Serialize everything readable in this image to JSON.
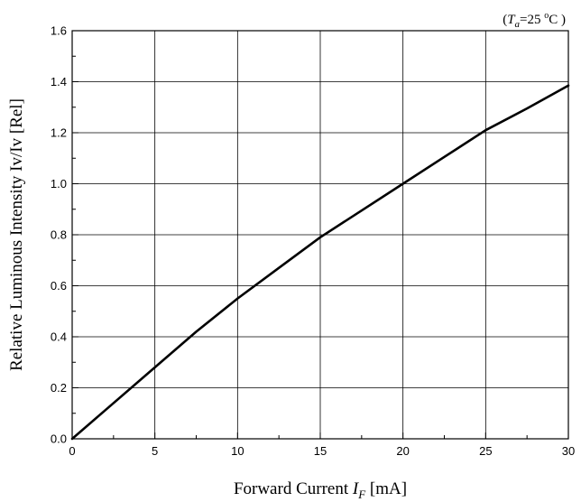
{
  "chart_data": {
    "type": "line",
    "title": "",
    "condition": {
      "open": "(",
      "var": "T",
      "sub": "a",
      "rest": "=25 ",
      "unit_sup": "o",
      "unit": "C )"
    },
    "xlabel": {
      "prefix": "Forward Current  ",
      "var": "I",
      "sub": "F",
      "suffix": " [mA]"
    },
    "ylabel": "Relative Luminous Intensity Iv/Iv [Rel]",
    "xlim": [
      0,
      30
    ],
    "ylim": [
      0,
      1.6
    ],
    "xticks": [
      "0",
      "5",
      "10",
      "15",
      "20",
      "25",
      "30"
    ],
    "yticks": [
      "0.0",
      "0.2",
      "0.4",
      "0.6",
      "0.8",
      "1.0",
      "1.2",
      "1.4",
      "1.6"
    ],
    "grid": true,
    "series": [
      {
        "color": "#000000",
        "x": [
          0,
          2.5,
          5,
          7.5,
          10,
          12.5,
          15,
          17.5,
          20,
          22.5,
          25,
          27.5,
          30
        ],
        "y": [
          0,
          0.14,
          0.28,
          0.42,
          0.55,
          0.67,
          0.79,
          0.895,
          1.0,
          1.105,
          1.21,
          1.295,
          1.385
        ]
      }
    ]
  }
}
